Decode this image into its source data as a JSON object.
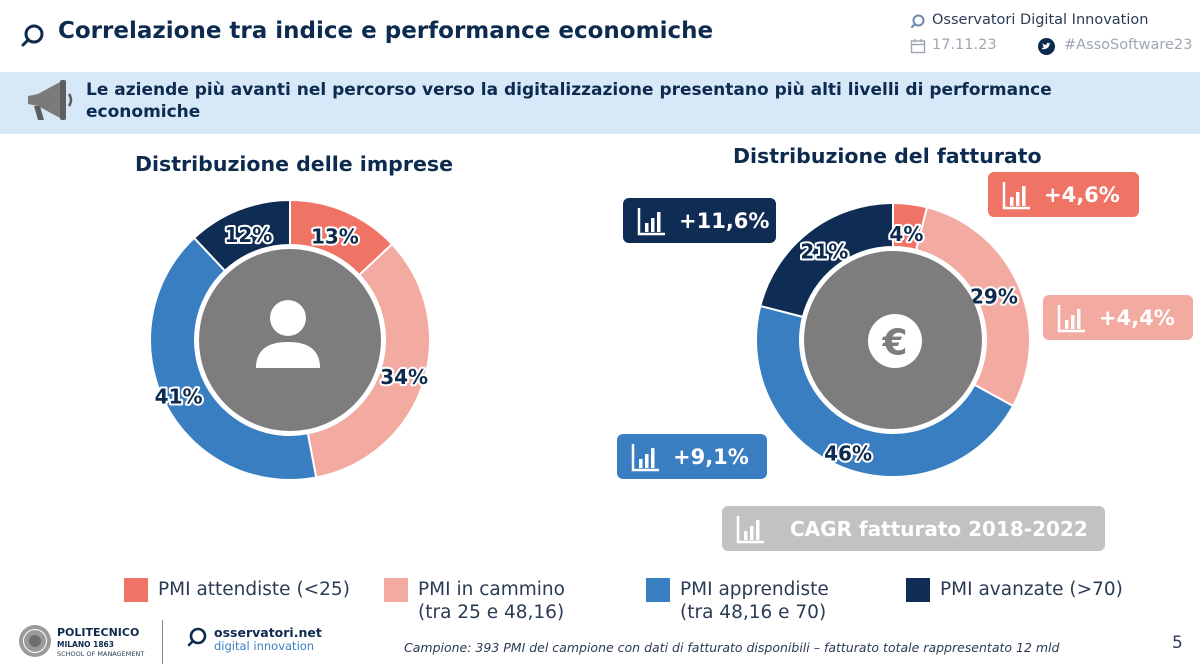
{
  "header": {
    "title": "Correlazione tra indice e performance economiche",
    "org": "Osservatori Digital Innovation",
    "date": "17.11.23",
    "hashtag": "#AssoSoftware23"
  },
  "banner": {
    "text": "Le aziende più avanti nel percorso verso la digitalizzazione presentano più alti livelli di performance economiche"
  },
  "colors": {
    "attendiste": "#ef7466",
    "cammino": "#f3aaa1",
    "apprendiste": "#3a7ec2",
    "avanzate": "#0f2c54",
    "center": "#7d7d7d",
    "cagr_badge": "#c2c2c2"
  },
  "chart_data": [
    {
      "type": "pie",
      "title": "Distribuzione delle imprese",
      "donut": true,
      "center_icon": "person-icon",
      "series": [
        {
          "name": "PMI attendiste (<25)",
          "value": 13,
          "label": "13%"
        },
        {
          "name": "PMI in cammino (tra 25 e 48,16)",
          "value": 34,
          "label": "34%"
        },
        {
          "name": "PMI apprendiste (tra 48,16 e 70)",
          "value": 41,
          "label": "41%"
        },
        {
          "name": "PMI avanzate (>70)",
          "value": 12,
          "label": "12%"
        }
      ]
    },
    {
      "type": "pie",
      "title": "Distribuzione del fatturato",
      "donut": true,
      "center_icon": "euro-icon",
      "series": [
        {
          "name": "PMI attendiste (<25)",
          "value": 4,
          "label": "4%",
          "cagr": "+4,6%"
        },
        {
          "name": "PMI in cammino (tra 25 e 48,16)",
          "value": 29,
          "label": "29%",
          "cagr": "+4,4%"
        },
        {
          "name": "PMI apprendiste (tra 48,16 e 70)",
          "value": 46,
          "label": "46%",
          "cagr": "+9,1%"
        },
        {
          "name": "PMI avanzate (>70)",
          "value": 21,
          "label": "21%",
          "cagr": "+11,6%"
        }
      ],
      "cagr_label": "CAGR fatturato 2018-2022"
    }
  ],
  "legend": [
    {
      "line1": "PMI attendiste (<25)",
      "line2": ""
    },
    {
      "line1": "PMI in cammino",
      "line2": "(tra 25 e 48,16)"
    },
    {
      "line1": "PMI apprendiste",
      "line2": "(tra 48,16 e 70)"
    },
    {
      "line1": "PMI avanzate (>70)",
      "line2": ""
    }
  ],
  "footer": {
    "poli_line1": "POLITECNICO",
    "poli_line2": "MILANO 1863",
    "poli_line3": "SCHOOL OF MANAGEMENT",
    "osservatori_line1": "osservatori.net",
    "osservatori_line2": "digital innovation",
    "note": "Campione: 393 PMI del campione con dati di fatturato disponibili – fatturato totale rappresentato 12 mld",
    "page": "5"
  }
}
